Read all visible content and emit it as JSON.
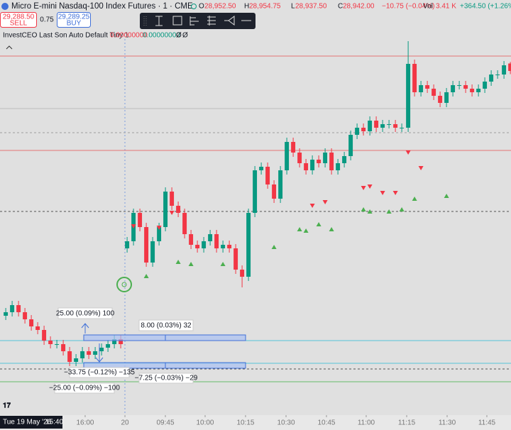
{
  "header": {
    "title": "Micro E-mini Nasdaq-100 Index Futures · 1 · CME",
    "ohlc": [
      {
        "label": "O",
        "value": "28,952.50"
      },
      {
        "label": "H",
        "value": "28,954.75"
      },
      {
        "label": "L",
        "value": "28,937.50"
      },
      {
        "label": "C",
        "value": "28,942.00"
      }
    ],
    "change": "−10.75 (−0.04%)",
    "vol_label": "Vol",
    "vol": "3.41 K",
    "day_change": "+364.50 (+1.26%)"
  },
  "trade": {
    "sell_price": "29,288.50",
    "sell": "SELL",
    "spread": "0.75",
    "buy_price": "29,289.25",
    "buy": "BUY"
  },
  "indicator": {
    "name": "InvestCEO Last Son Auto Default Tiny 1",
    "v1": "0.00000000",
    "v2": "0.00000000",
    "v3": "Ø",
    "v4": "Ø"
  },
  "position_labels": [
    "25.00 (0.09%) 100",
    "8.00 (0.03%) 32",
    "−33.75 (−0.12%) −135",
    "−7.25 (−0.03%) −29",
    "−25.00 (−0.09%) −100"
  ],
  "footer": {
    "date": "Tue 19 May '26",
    "time": "15:40"
  },
  "chart_data": {
    "type": "candlestick",
    "up_color": "#089981",
    "down_color": "#f23645",
    "xlim": [
      -0.9,
      79.1
    ],
    "ylim": [
      28457,
      28987
    ],
    "xticks": [
      {
        "value": 12.43,
        "label": "16:00"
      },
      {
        "value": 18.66,
        "label": "20"
      },
      {
        "value": 24.99,
        "label": "09:45"
      },
      {
        "value": 31.21,
        "label": "10:00"
      },
      {
        "value": 37.54,
        "label": "10:15"
      },
      {
        "value": 43.88,
        "label": "10:30"
      },
      {
        "value": 50.21,
        "label": "10:45"
      },
      {
        "value": 56.43,
        "label": "11:00"
      },
      {
        "value": 62.77,
        "label": "11:15"
      },
      {
        "value": 69.1,
        "label": "11:30"
      },
      {
        "value": 75.32,
        "label": "11:45"
      }
    ],
    "candles": [
      [
        28597,
        28608,
        28591,
        28602
      ],
      [
        28602,
        28618,
        28596,
        28612
      ],
      [
        28612,
        28618,
        28596,
        28602
      ],
      [
        28602,
        28608,
        28586,
        28592
      ],
      [
        28592,
        28598,
        28576,
        28582
      ],
      [
        28582,
        28588,
        28571,
        28577
      ],
      [
        28577,
        28583,
        28556,
        28562
      ],
      [
        28562,
        28568,
        28551,
        28557
      ],
      [
        28557,
        28563,
        28551,
        28557
      ],
      [
        28557,
        28563,
        28541,
        28547
      ],
      [
        28547,
        28553,
        28526,
        28532
      ],
      [
        28532,
        28543,
        28526,
        28537
      ],
      [
        28537,
        28553,
        28531,
        28547
      ],
      [
        28547,
        28553,
        28536,
        28542
      ],
      [
        28542,
        28553,
        28536,
        28547
      ],
      [
        28547,
        28558,
        28541,
        28552
      ],
      [
        28552,
        28563,
        28546,
        28557
      ],
      [
        28557,
        28570,
        28551,
        28564
      ],
      [
        28564,
        28570,
        28551,
        28557
      ],
      [
        28692,
        28708,
        28686,
        28702
      ],
      [
        28702,
        28748,
        28696,
        28742
      ],
      [
        28742,
        28748,
        28716,
        28722
      ],
      [
        28722,
        28728,
        28666,
        28672
      ],
      [
        28672,
        28708,
        28666,
        28702
      ],
      [
        28702,
        28728,
        28696,
        28722
      ],
      [
        28722,
        28778,
        28716,
        28772
      ],
      [
        28772,
        28778,
        28746,
        28752
      ],
      [
        28752,
        28758,
        28736,
        28742
      ],
      [
        28742,
        28748,
        28706,
        28712
      ],
      [
        28712,
        28718,
        28691,
        28697
      ],
      [
        28697,
        28703,
        28686,
        28692
      ],
      [
        28692,
        28708,
        28686,
        28702
      ],
      [
        28702,
        28718,
        28696,
        28712
      ],
      [
        28712,
        28718,
        28686,
        28692
      ],
      [
        28692,
        28703,
        28686,
        28697
      ],
      [
        28697,
        28703,
        28686,
        28692
      ],
      [
        28692,
        28698,
        28656,
        28662
      ],
      [
        28662,
        28668,
        28637,
        28652
      ],
      [
        28652,
        28748,
        28646,
        28742
      ],
      [
        28742,
        28808,
        28736,
        28802
      ],
      [
        28802,
        28813,
        28796,
        28807
      ],
      [
        28807,
        28813,
        28776,
        28782
      ],
      [
        28782,
        28788,
        28756,
        28762
      ],
      [
        28762,
        28808,
        28756,
        28802
      ],
      [
        28802,
        28848,
        28796,
        28842
      ],
      [
        28842,
        28848,
        28821,
        28827
      ],
      [
        28827,
        28833,
        28806,
        28812
      ],
      [
        28812,
        28818,
        28796,
        28802
      ],
      [
        28802,
        28823,
        28796,
        28817
      ],
      [
        28817,
        28823,
        28806,
        28812
      ],
      [
        28812,
        28833,
        28806,
        28827
      ],
      [
        28827,
        28833,
        28796,
        28802
      ],
      [
        28802,
        28818,
        28796,
        28812
      ],
      [
        28812,
        28828,
        28806,
        28822
      ],
      [
        28822,
        28858,
        28816,
        28852
      ],
      [
        28852,
        28868,
        28846,
        28862
      ],
      [
        28862,
        28868,
        28851,
        28857
      ],
      [
        28857,
        28878,
        28851,
        28872
      ],
      [
        28872,
        28878,
        28856,
        28862
      ],
      [
        28862,
        28873,
        28856,
        28867
      ],
      [
        28867,
        28873,
        28861,
        28867
      ],
      [
        28867,
        28873,
        28856,
        28862
      ],
      [
        28862,
        28868,
        28856,
        28862
      ],
      [
        28862,
        28984,
        28856,
        28952
      ],
      [
        28952,
        28958,
        28906,
        28912
      ],
      [
        28912,
        28928,
        28906,
        28922
      ],
      [
        28922,
        28928,
        28911,
        28917
      ],
      [
        28917,
        28923,
        28901,
        28907
      ],
      [
        28907,
        28913,
        28891,
        28897
      ],
      [
        28897,
        28918,
        28891,
        28912
      ],
      [
        28912,
        28928,
        28906,
        28922
      ],
      [
        28922,
        28928,
        28916,
        28922
      ],
      [
        28922,
        28928,
        28911,
        28917
      ],
      [
        28917,
        28923,
        28906,
        28912
      ],
      [
        28912,
        28923,
        28906,
        28917
      ],
      [
        28917,
        28933,
        28911,
        28927
      ],
      [
        28927,
        28943,
        28921,
        28937
      ],
      [
        28937,
        28943,
        28931,
        28937
      ],
      [
        28937,
        28956,
        28931,
        28950
      ],
      [
        28952.5,
        28954.75,
        28937.5,
        28942
      ]
    ],
    "sell_signals": {
      "color": "#f23645",
      "x": [
        20,
        24,
        26,
        48,
        50,
        56,
        57,
        59,
        61,
        63,
        65
      ],
      "y": [
        28723,
        28721,
        28742,
        28752,
        28757,
        28777,
        28779,
        28770,
        28770,
        28827,
        28805
      ]
    },
    "buy_signals": {
      "color": "#4caf50",
      "x": [
        22,
        27,
        29,
        34,
        42,
        46,
        47,
        49,
        51,
        56,
        57,
        60,
        62,
        64,
        69
      ],
      "y": [
        28653,
        28673,
        28670,
        28670,
        28694,
        28719,
        28717,
        28726,
        28719,
        28747,
        28744,
        28744,
        28747,
        28762,
        28766
      ]
    },
    "levels": [
      {
        "value": 28963,
        "color": "#e57373",
        "style": "solid"
      },
      {
        "value": 28889,
        "color": "#bdbdbd",
        "style": "solid"
      },
      {
        "value": 28855,
        "color": "#9e9e9e",
        "style": "dashed"
      },
      {
        "value": 28830,
        "color": "#e57373",
        "style": "solid"
      },
      {
        "value": 28744,
        "color": "#555555",
        "style": "dashed"
      },
      {
        "value": 28562,
        "color": "#56c4d8",
        "style": "solid"
      },
      {
        "value": 28530,
        "color": "#56c4d8",
        "style": "solid"
      },
      {
        "value": 28522,
        "color": "#555555",
        "style": "dashed"
      },
      {
        "value": 28504,
        "color": "#66bb6a",
        "style": "solid"
      }
    ]
  }
}
